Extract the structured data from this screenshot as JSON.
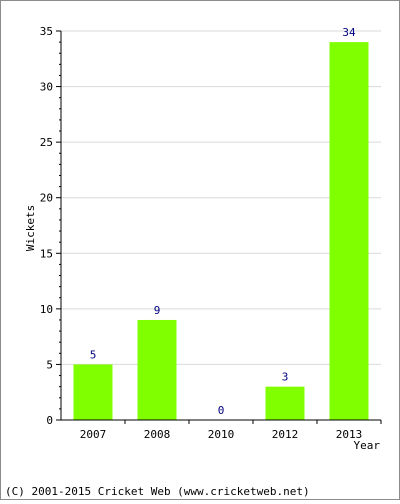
{
  "chart_data": {
    "type": "bar",
    "categories": [
      "2007",
      "2008",
      "2010",
      "2012",
      "2013"
    ],
    "values": [
      5,
      9,
      0,
      3,
      34
    ],
    "title": "",
    "xlabel": "Year",
    "ylabel": "Wickets",
    "ylim": [
      0,
      35
    ],
    "yticks": [
      0,
      5,
      10,
      15,
      20,
      25,
      30,
      35
    ],
    "grid": true,
    "legend": "none",
    "bar_color": "#80ff00",
    "label_color": "#000080"
  },
  "footer": {
    "copyright": "(C) 2001-2015 Cricket Web (www.cricketweb.net)"
  }
}
